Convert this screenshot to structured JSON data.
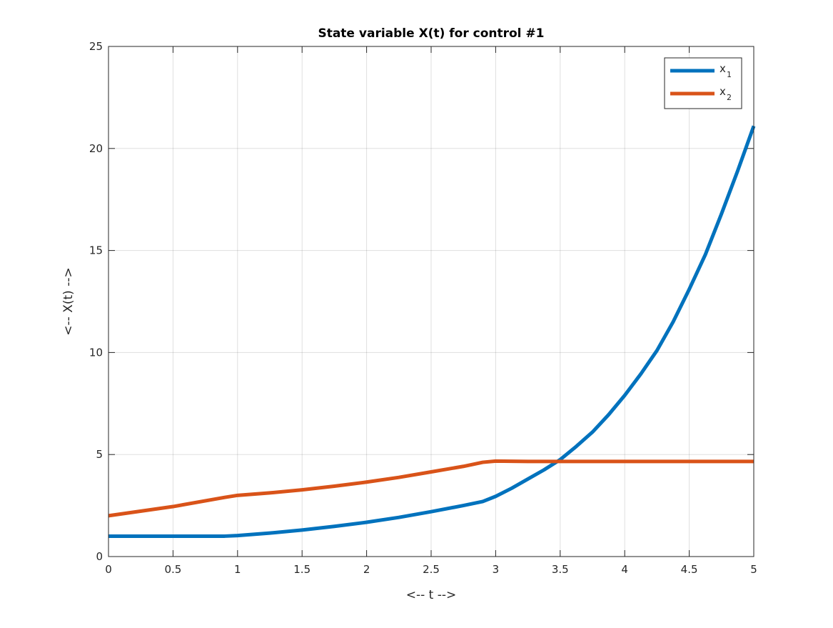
{
  "chart_data": {
    "type": "line",
    "title": "State variable X(t) for control #1",
    "xlabel": "<-- t -->",
    "ylabel": "<-- X(t) -->",
    "xlim": [
      0,
      5
    ],
    "ylim": [
      0,
      25
    ],
    "xticks": [
      "0",
      "0.5",
      "1",
      "1.5",
      "2",
      "2.5",
      "3",
      "3.5",
      "4",
      "4.5",
      "5"
    ],
    "yticks": [
      "0",
      "5",
      "10",
      "15",
      "20",
      "25"
    ],
    "grid": true,
    "legend_position": "top-right",
    "x": [
      0,
      0.5,
      0.9,
      1,
      1.25,
      1.5,
      1.75,
      2,
      2.25,
      2.5,
      2.75,
      2.9,
      3,
      3.125,
      3.25,
      3.375,
      3.5,
      3.625,
      3.75,
      3.875,
      4,
      4.125,
      4.25,
      4.375,
      4.5,
      4.625,
      4.75,
      4.875,
      5
    ],
    "series": [
      {
        "name": "x",
        "subscript": "1",
        "color": "#0072BD",
        "values": [
          1,
          1,
          1,
          1.03,
          1.15,
          1.3,
          1.48,
          1.68,
          1.92,
          2.2,
          2.5,
          2.7,
          2.95,
          3.35,
          3.8,
          4.25,
          4.75,
          5.4,
          6.1,
          6.95,
          7.9,
          8.95,
          10.1,
          11.5,
          13.1,
          14.8,
          16.8,
          18.9,
          21.1
        ]
      },
      {
        "name": "x",
        "subscript": "2",
        "color": "#D95319",
        "values": [
          2,
          2.45,
          2.9,
          3.0,
          3.12,
          3.27,
          3.45,
          3.65,
          3.88,
          4.15,
          4.42,
          4.62,
          4.68,
          4.67,
          4.66,
          4.66,
          4.66,
          4.66,
          4.66,
          4.66,
          4.66,
          4.66,
          4.66,
          4.66,
          4.66,
          4.66,
          4.66,
          4.66,
          4.66
        ]
      }
    ]
  }
}
